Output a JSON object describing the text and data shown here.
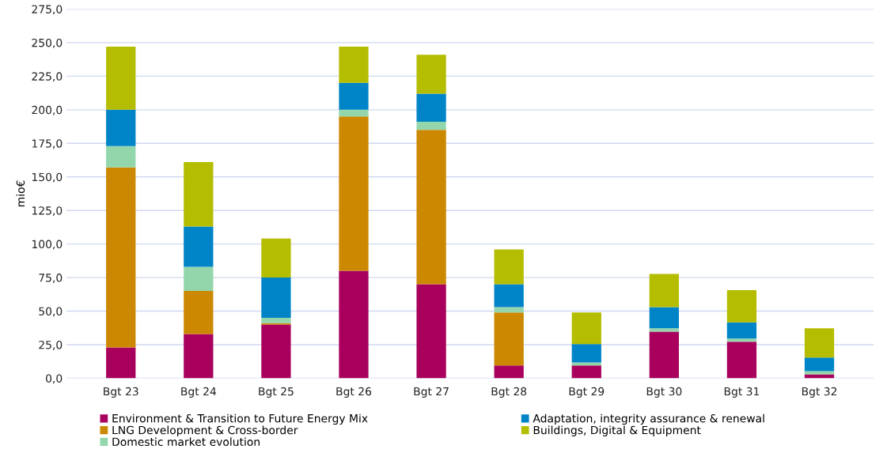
{
  "chart_data": {
    "type": "bar",
    "stacked": true,
    "ylabel": "mio€",
    "categories": [
      "Bgt 23",
      "Bgt 24",
      "Bgt 25",
      "Bgt 26",
      "Bgt 27",
      "Bgt 28",
      "Bgt 29",
      "Bgt 30",
      "Bgt 31",
      "Bgt 32"
    ],
    "series": [
      {
        "name": "Environment & Transition to Future Energy Mix",
        "color": "#a8005c",
        "values": [
          23,
          33,
          40,
          80,
          70,
          9.5,
          9.5,
          34.7,
          27.2,
          2.9
        ]
      },
      {
        "name": "LNG Development & Cross-border",
        "color": "#cc8800",
        "values": [
          134,
          32,
          1,
          115,
          115,
          39.5,
          0,
          0,
          0,
          0
        ]
      },
      {
        "name": "Domestic market evolution",
        "color": "#94d6ac",
        "values": [
          16,
          18,
          4,
          5,
          6,
          4,
          2.2,
          2.5,
          2.4,
          2.4
        ]
      },
      {
        "name": "Adaptation, integrity assurance & renewal",
        "color": "#0084c8",
        "values": [
          27,
          30,
          30,
          20,
          21,
          17,
          13.7,
          15.8,
          12,
          10.2
        ]
      },
      {
        "name": "Buildings, Digital & Equipment",
        "color": "#b5bd00",
        "values": [
          47,
          48,
          29,
          27,
          29,
          26,
          23.6,
          24.7,
          24.1,
          21.7
        ]
      }
    ],
    "ylim": [
      0,
      275
    ],
    "yticks": [
      {
        "value": 0,
        "label": "0,0"
      },
      {
        "value": 25,
        "label": "25,0"
      },
      {
        "value": 50,
        "label": "50,0"
      },
      {
        "value": 75,
        "label": "75,0"
      },
      {
        "value": 100,
        "label": "100,0"
      },
      {
        "value": 125,
        "label": "125,0"
      },
      {
        "value": 150,
        "label": "150,0"
      },
      {
        "value": 175,
        "label": "175,0"
      },
      {
        "value": 200,
        "label": "200,0"
      },
      {
        "value": 225,
        "label": "225,0"
      },
      {
        "value": 250,
        "label": "250,0"
      },
      {
        "value": 275,
        "label": "275,0"
      }
    ],
    "grid": "y",
    "legend": "bottom"
  }
}
